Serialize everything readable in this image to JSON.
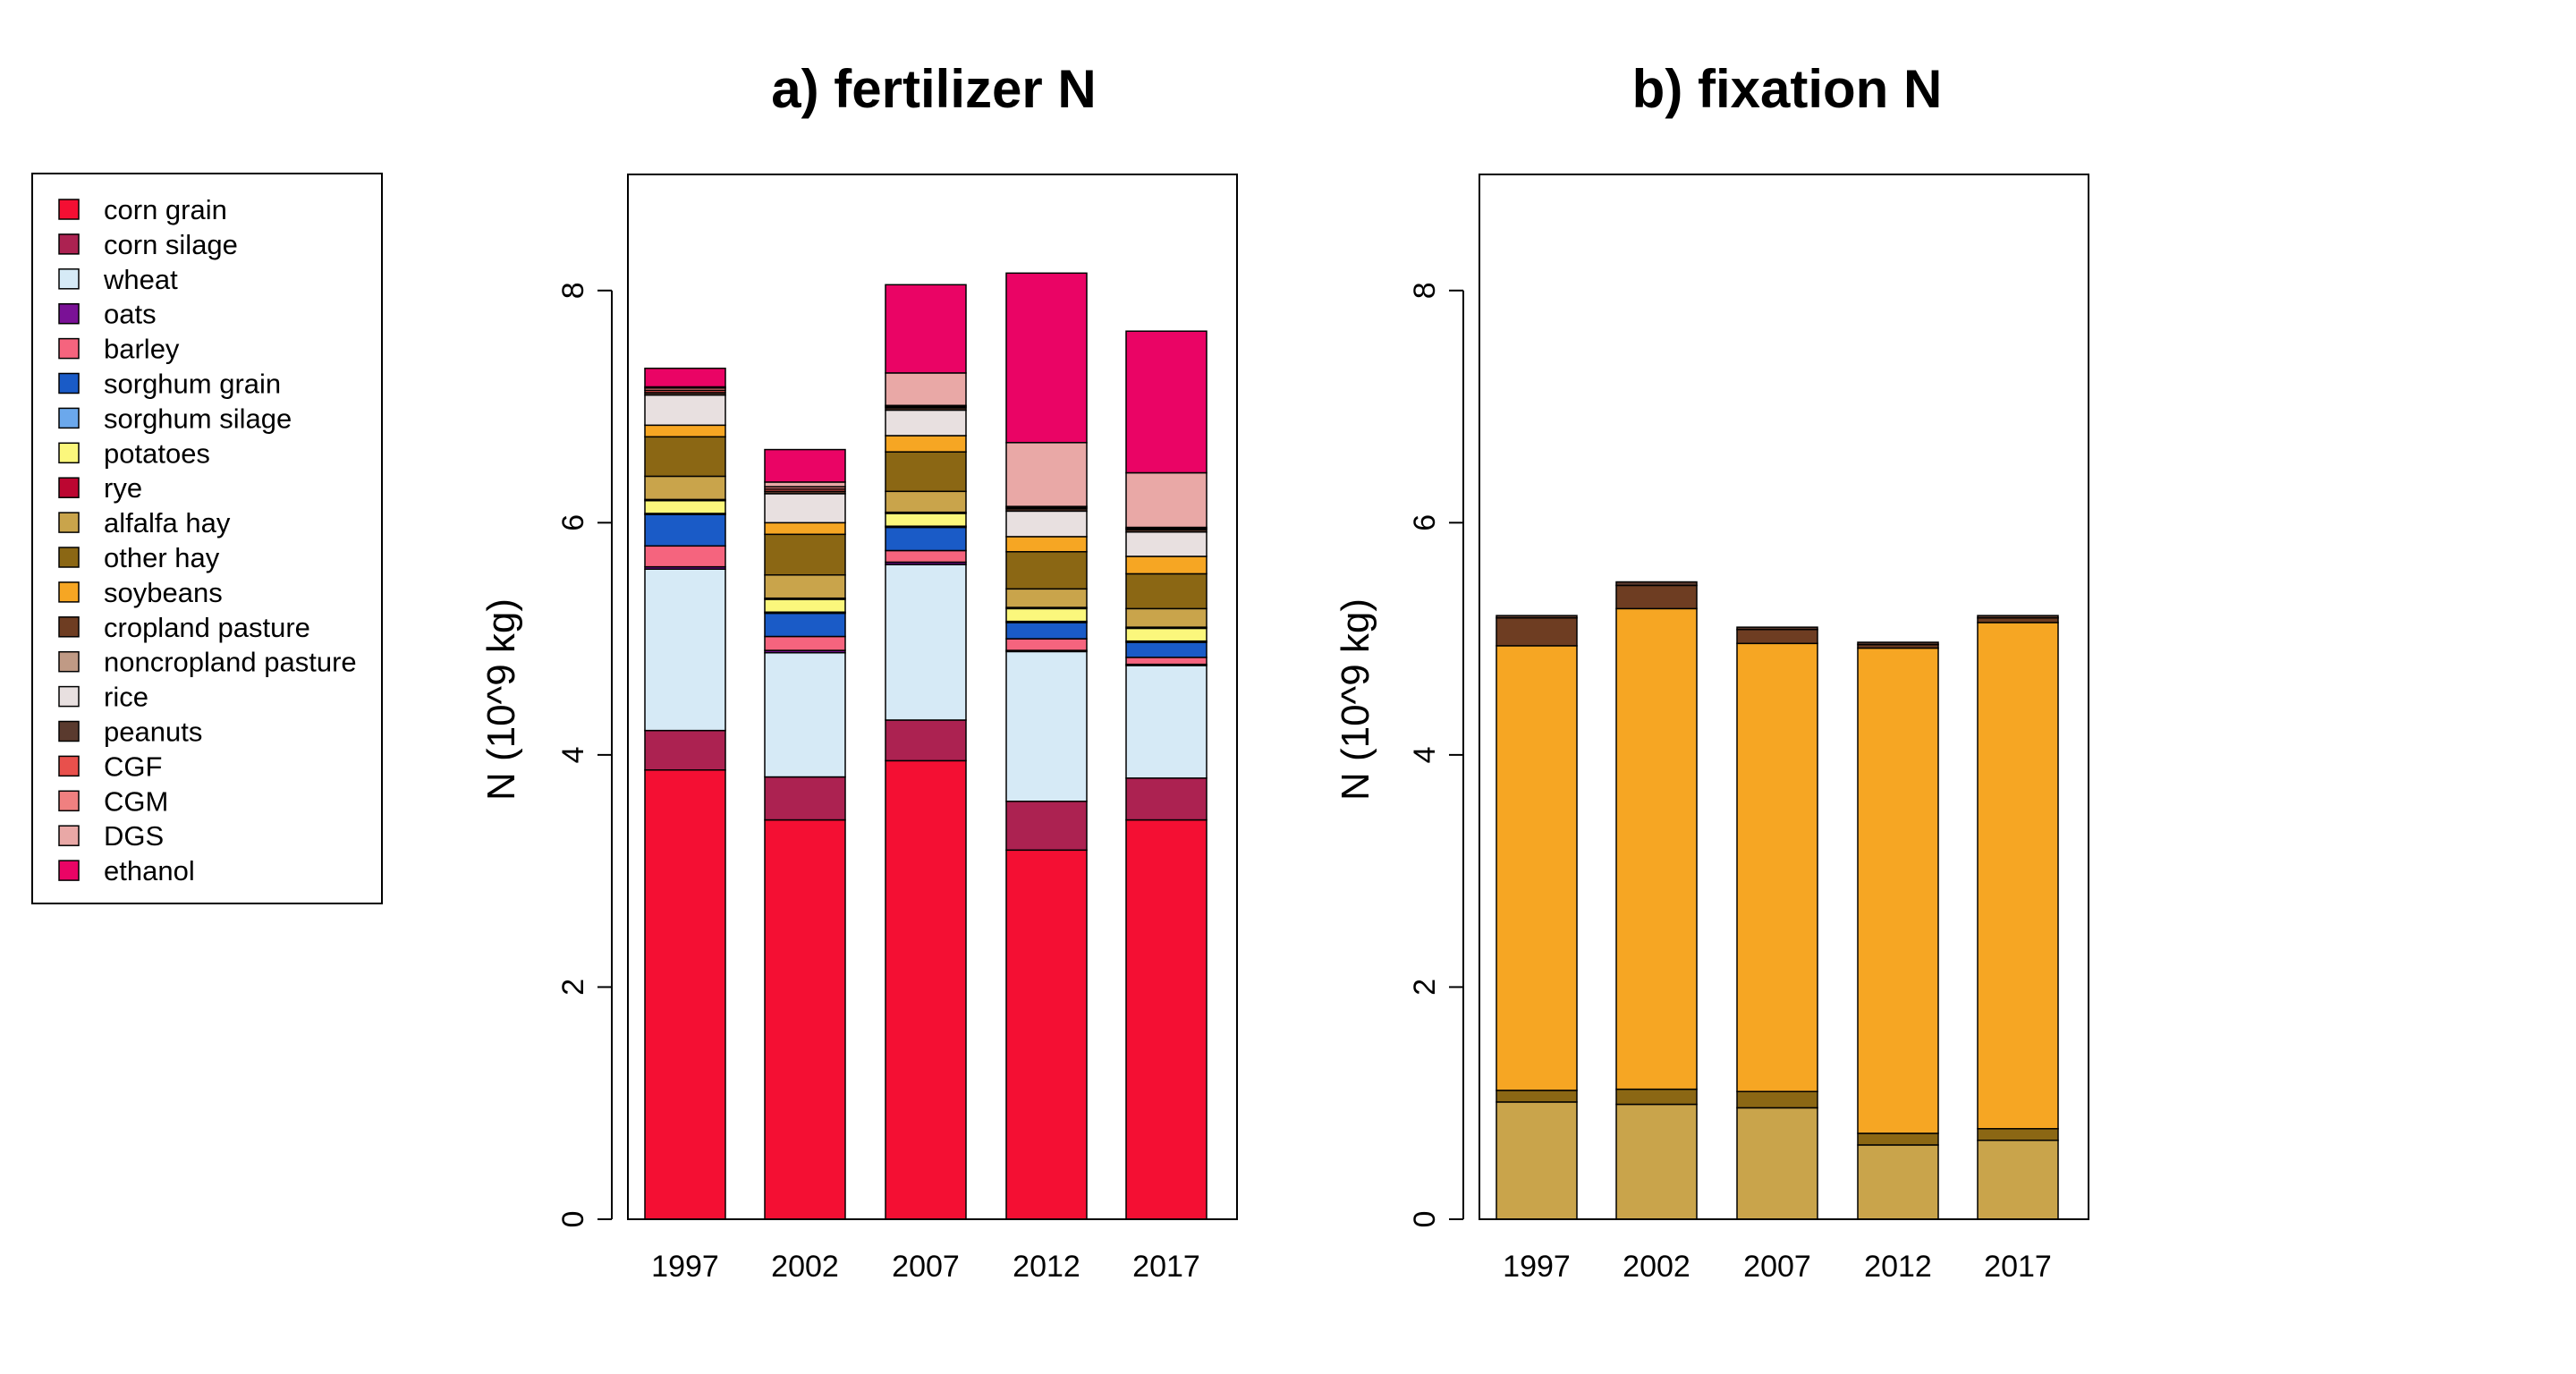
{
  "legend": {
    "entries": [
      {
        "label": "corn grain",
        "color": "#F40F33"
      },
      {
        "label": "corn silage",
        "color": "#AC2251"
      },
      {
        "label": "wheat",
        "color": "#D6EAF6"
      },
      {
        "label": "oats",
        "color": "#7A1196"
      },
      {
        "label": "barley",
        "color": "#F5647E"
      },
      {
        "label": "sorghum grain",
        "color": "#1A5BC7"
      },
      {
        "label": "sorghum silage",
        "color": "#6BA8EC"
      },
      {
        "label": "potatoes",
        "color": "#FBF77C"
      },
      {
        "label": "rye",
        "color": "#BC0631"
      },
      {
        "label": "alfalfa hay",
        "color": "#C9A44B"
      },
      {
        "label": "other hay",
        "color": "#8B6714"
      },
      {
        "label": "soybeans",
        "color": "#F6A623"
      },
      {
        "label": "cropland pasture",
        "color": "#6E3D22"
      },
      {
        "label": "noncropland pasture",
        "color": "#C09A85"
      },
      {
        "label": "rice",
        "color": "#E8E0E0"
      },
      {
        "label": "peanuts",
        "color": "#5A3A2E"
      },
      {
        "label": "CGF",
        "color": "#E8504C"
      },
      {
        "label": "CGM",
        "color": "#F08080"
      },
      {
        "label": "DGS",
        "color": "#E9A8A6"
      },
      {
        "label": "ethanol",
        "color": "#EA0465"
      }
    ]
  },
  "chart_data": [
    {
      "type": "bar",
      "stacked": true,
      "title": "a) fertilizer N",
      "ylabel": "N (10^9 kg)",
      "ylim": [
        0,
        9
      ],
      "yticks": [
        0,
        2,
        4,
        6,
        8
      ],
      "categories": [
        "1997",
        "2002",
        "2007",
        "2012",
        "2017"
      ],
      "series": [
        {
          "name": "corn grain",
          "color": "#F40F33",
          "values": [
            3.87,
            3.44,
            3.95,
            3.18,
            3.44
          ]
        },
        {
          "name": "corn silage",
          "color": "#AC2251",
          "values": [
            0.34,
            0.37,
            0.35,
            0.42,
            0.36
          ]
        },
        {
          "name": "wheat",
          "color": "#D6EAF6",
          "values": [
            1.39,
            1.07,
            1.34,
            1.29,
            0.97
          ]
        },
        {
          "name": "oats",
          "color": "#7A1196",
          "values": [
            0.02,
            0.02,
            0.02,
            0.01,
            0.01
          ]
        },
        {
          "name": "barley",
          "color": "#F5647E",
          "values": [
            0.18,
            0.12,
            0.1,
            0.1,
            0.06
          ]
        },
        {
          "name": "sorghum grain",
          "color": "#1A5BC7",
          "values": [
            0.27,
            0.2,
            0.2,
            0.14,
            0.13
          ]
        },
        {
          "name": "sorghum silage",
          "color": "#6BA8EC",
          "values": [
            0.01,
            0.01,
            0.01,
            0.01,
            0.01
          ]
        },
        {
          "name": "potatoes",
          "color": "#FBF77C",
          "values": [
            0.11,
            0.11,
            0.11,
            0.11,
            0.11
          ]
        },
        {
          "name": "rye",
          "color": "#BC0631",
          "values": [
            0.01,
            0.01,
            0.01,
            0.01,
            0.01
          ]
        },
        {
          "name": "alfalfa hay",
          "color": "#C9A44B",
          "values": [
            0.2,
            0.2,
            0.18,
            0.16,
            0.16
          ]
        },
        {
          "name": "other hay",
          "color": "#8B6714",
          "values": [
            0.34,
            0.35,
            0.34,
            0.32,
            0.3
          ]
        },
        {
          "name": "soybeans",
          "color": "#F6A623",
          "values": [
            0.1,
            0.1,
            0.14,
            0.13,
            0.15
          ]
        },
        {
          "name": "cropland pasture",
          "color": "#6E3D22",
          "values": [
            0,
            0,
            0,
            0,
            0
          ]
        },
        {
          "name": "noncropland pasture",
          "color": "#C09A85",
          "values": [
            0,
            0,
            0,
            0,
            0
          ]
        },
        {
          "name": "rice",
          "color": "#E8E0E0",
          "values": [
            0.26,
            0.25,
            0.22,
            0.22,
            0.21
          ]
        },
        {
          "name": "peanuts",
          "color": "#5A3A2E",
          "values": [
            0.02,
            0.02,
            0.02,
            0.02,
            0.02
          ]
        },
        {
          "name": "CGF",
          "color": "#E8504C",
          "values": [
            0.02,
            0.02,
            0.01,
            0.01,
            0.01
          ]
        },
        {
          "name": "CGM",
          "color": "#F08080",
          "values": [
            0.02,
            0.02,
            0.01,
            0.01,
            0.01
          ]
        },
        {
          "name": "DGS",
          "color": "#E9A8A6",
          "values": [
            0.01,
            0.04,
            0.28,
            0.55,
            0.47
          ]
        },
        {
          "name": "ethanol",
          "color": "#EA0465",
          "values": [
            0.16,
            0.28,
            0.76,
            1.46,
            1.22
          ]
        }
      ]
    },
    {
      "type": "bar",
      "stacked": true,
      "title": "b) fixation N",
      "ylabel": "N (10^9 kg)",
      "ylim": [
        0,
        9
      ],
      "yticks": [
        0,
        2,
        4,
        6,
        8
      ],
      "categories": [
        "1997",
        "2002",
        "2007",
        "2012",
        "2017"
      ],
      "series": [
        {
          "name": "alfalfa hay",
          "color": "#C9A44B",
          "values": [
            1.01,
            0.99,
            0.96,
            0.64,
            0.68
          ]
        },
        {
          "name": "other hay",
          "color": "#8B6714",
          "values": [
            0.1,
            0.13,
            0.14,
            0.1,
            0.1
          ]
        },
        {
          "name": "soybeans",
          "color": "#F6A623",
          "values": [
            3.83,
            4.14,
            3.86,
            4.18,
            4.36
          ]
        },
        {
          "name": "cropland pasture",
          "color": "#6E3D22",
          "values": [
            0.24,
            0.2,
            0.12,
            0.03,
            0.04
          ]
        },
        {
          "name": "peanuts",
          "color": "#5A3A2E",
          "values": [
            0.02,
            0.03,
            0.02,
            0.02,
            0.02
          ]
        }
      ]
    }
  ]
}
